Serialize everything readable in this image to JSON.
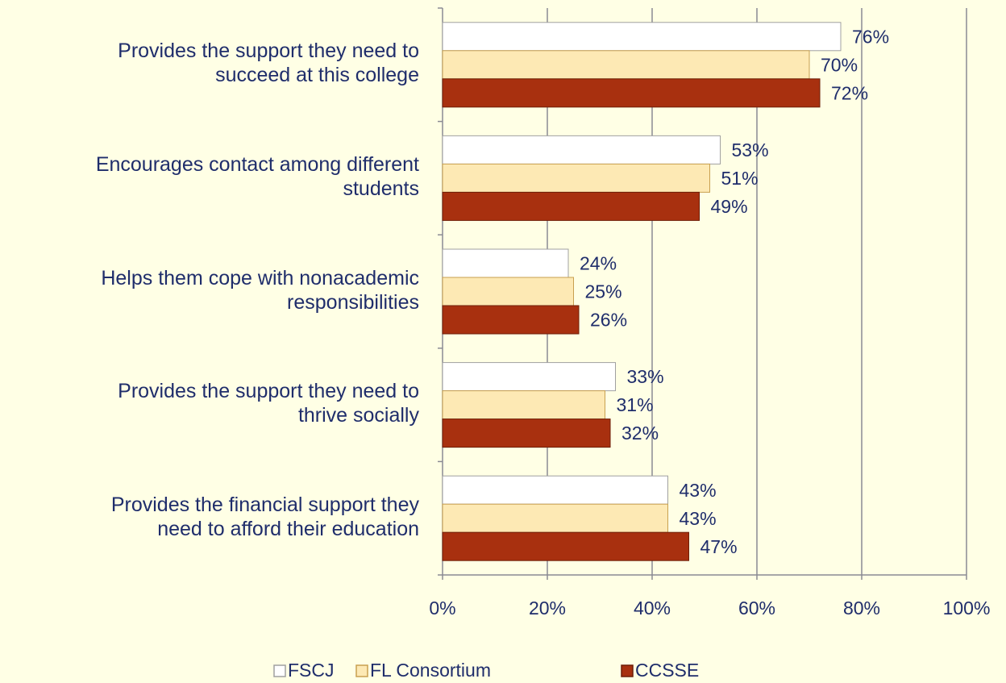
{
  "chart_data": {
    "type": "hbar",
    "categories": [
      "Provides the support they need to\nsucceed at this college",
      "Encourages contact among different\nstudents",
      "Helps them cope with nonacademic\nresponsibilities",
      "Provides the support they need to\nthrive socially",
      "Provides the financial support they\nneed to afford their education"
    ],
    "series": [
      {
        "name": "FSCJ",
        "color": "#FFFFFF",
        "values": [
          76,
          53,
          24,
          33,
          43
        ],
        "value_labels": [
          "76%",
          "53%",
          "24%",
          "33%",
          "43%"
        ]
      },
      {
        "name": "FL Consortium",
        "color": "#FDE9B4",
        "values": [
          70,
          51,
          25,
          31,
          43
        ],
        "value_labels": [
          "70%",
          "51%",
          "25%",
          "31%",
          "43%"
        ]
      },
      {
        "name": "CCSSE",
        "color": "#A8300F",
        "values": [
          72,
          49,
          26,
          32,
          47
        ],
        "value_labels": [
          "72%",
          "49%",
          "26%",
          "32%",
          "47%"
        ]
      }
    ],
    "xlim": [
      0,
      100
    ],
    "xticks": [
      {
        "value": 0,
        "label": "0%"
      },
      {
        "value": 20,
        "label": "20%"
      },
      {
        "value": 40,
        "label": "40%"
      },
      {
        "value": 60,
        "label": "60%"
      },
      {
        "value": 80,
        "label": "80%"
      },
      {
        "value": 100,
        "label": "100%"
      }
    ],
    "grid": true,
    "legend": "bottom"
  }
}
